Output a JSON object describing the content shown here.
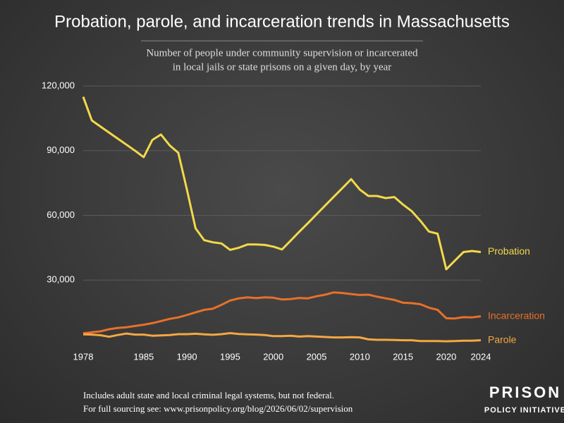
{
  "chart_data": {
    "type": "line",
    "title": "Probation, parole, and incarceration trends in Massachusetts",
    "subtitle": [
      "Number of people under community supervision or incarcerated",
      "in local jails or state prisons on a given day, by year"
    ],
    "footnotes": [
      "Includes adult state and local criminal legal systems, but not federal.",
      "For full sourcing see: www.prisonpolicy.org/blog/2026/06/02/supervision"
    ],
    "logo": [
      "PRISON",
      "POLICY INITIATIVE"
    ],
    "x": [
      1978,
      1979,
      1980,
      1981,
      1982,
      1983,
      1984,
      1985,
      1986,
      1987,
      1988,
      1989,
      1990,
      1991,
      1992,
      1993,
      1994,
      1995,
      1996,
      1997,
      1998,
      1999,
      2000,
      2001,
      2002,
      2003,
      2004,
      2005,
      2006,
      2007,
      2008,
      2009,
      2010,
      2011,
      2012,
      2013,
      2014,
      2015,
      2016,
      2017,
      2018,
      2019,
      2020,
      2021,
      2022,
      2023,
      2024
    ],
    "xlim": [
      1978,
      2024
    ],
    "xticks": [
      1978,
      1985,
      1990,
      1995,
      2000,
      2005,
      2010,
      2015,
      2020,
      2024
    ],
    "ylim": [
      0,
      120000
    ],
    "yticks": [
      {
        "value": 30000,
        "label": "30,000"
      },
      {
        "value": 60000,
        "label": "60,000"
      },
      {
        "value": 90000,
        "label": "90,000"
      },
      {
        "value": 120000,
        "label": "120,000"
      }
    ],
    "grid": true,
    "series": [
      {
        "name": "Probation",
        "color": "#f3d94a",
        "values": [
          115000,
          104000,
          101200,
          98400,
          95600,
          92800,
          90000,
          87000,
          95000,
          97500,
          92500,
          89000,
          72000,
          54000,
          48500,
          47500,
          47000,
          44000,
          45000,
          46500,
          46500,
          46300,
          45500,
          44200,
          48300,
          52400,
          56400,
          60500,
          64600,
          68700,
          72700,
          76800,
          72000,
          69000,
          69000,
          68000,
          68500,
          65000,
          62000,
          57500,
          52500,
          51500,
          35000,
          39000,
          43000,
          43500,
          43000
        ]
      },
      {
        "name": "Incarceration",
        "color": "#e8702a",
        "values": [
          5300,
          5800,
          6200,
          7200,
          7800,
          8100,
          8700,
          9300,
          10000,
          11000,
          12000,
          12700,
          13800,
          15000,
          16200,
          16700,
          18500,
          20500,
          21500,
          22000,
          21600,
          22000,
          21800,
          21000,
          21200,
          21700,
          21500,
          22500,
          23200,
          24300,
          24000,
          23500,
          23100,
          23200,
          22300,
          21500,
          20800,
          19500,
          19300,
          18800,
          17200,
          16200,
          12300,
          12200,
          12800,
          12700,
          13200
        ]
      },
      {
        "name": "Parole",
        "color": "#f5a742",
        "values": [
          4800,
          4700,
          4400,
          3700,
          4500,
          5200,
          4700,
          4700,
          4200,
          4300,
          4500,
          4900,
          4900,
          5100,
          4800,
          4600,
          4900,
          5400,
          5000,
          4800,
          4700,
          4500,
          4000,
          4000,
          4200,
          3800,
          4000,
          3800,
          3600,
          3400,
          3400,
          3500,
          3400,
          2500,
          2300,
          2300,
          2200,
          2100,
          2100,
          1700,
          1700,
          1700,
          1600,
          1700,
          1900,
          1900,
          2100
        ]
      }
    ]
  }
}
